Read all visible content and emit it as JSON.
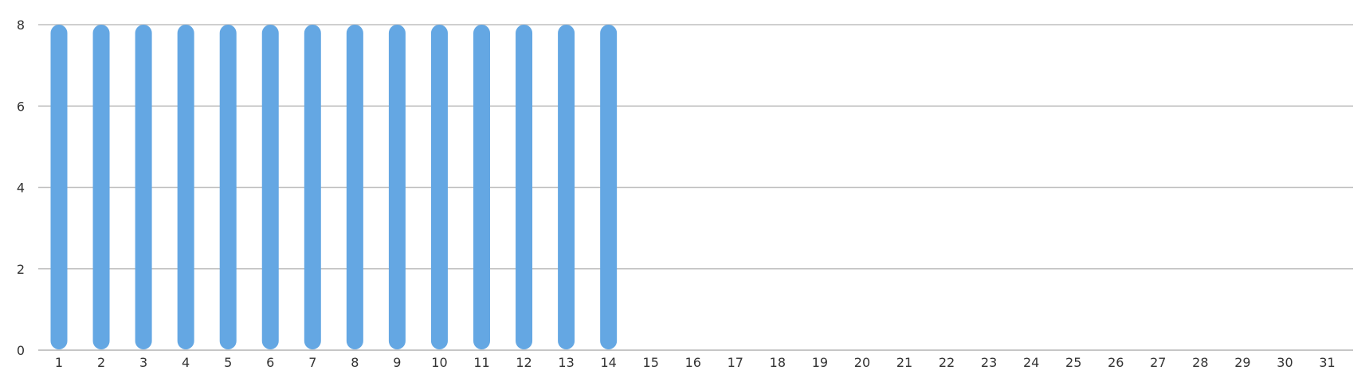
{
  "chart_data": {
    "type": "bar",
    "title": "",
    "xlabel": "",
    "ylabel": "",
    "categories": [
      "1",
      "2",
      "3",
      "4",
      "5",
      "6",
      "7",
      "8",
      "9",
      "10",
      "11",
      "12",
      "13",
      "14",
      "15",
      "16",
      "17",
      "18",
      "19",
      "20",
      "21",
      "22",
      "23",
      "24",
      "25",
      "26",
      "27",
      "28",
      "29",
      "30",
      "31"
    ],
    "values": [
      8,
      8,
      8,
      8,
      8,
      8,
      8,
      8,
      8,
      8,
      8,
      8,
      8,
      8,
      0,
      0,
      0,
      0,
      0,
      0,
      0,
      0,
      0,
      0,
      0,
      0,
      0,
      0,
      0,
      0,
      0
    ],
    "ylim": [
      0,
      8
    ],
    "yticks": [
      "0",
      "2",
      "4",
      "6",
      "8"
    ],
    "grid": true,
    "legend": "none",
    "bar_color": "#64a7e3",
    "grid_color": "#bfbfbf"
  }
}
